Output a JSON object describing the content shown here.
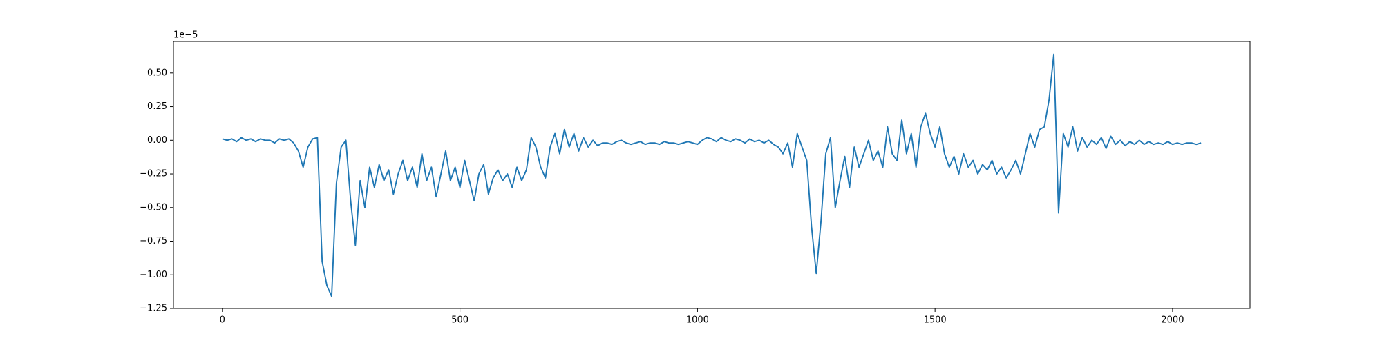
{
  "chart_data": {
    "type": "line",
    "y_offset_label": "1e−5",
    "xlim": [
      -103,
      2163
    ],
    "ylim": [
      -1.25,
      0.735
    ],
    "xticks": [
      0,
      500,
      1000,
      1500,
      2000
    ],
    "yticks": [
      {
        "value": -1.25,
        "label": "−1.25"
      },
      {
        "value": -1.0,
        "label": "−1.00"
      },
      {
        "value": -0.75,
        "label": "−0.75"
      },
      {
        "value": -0.5,
        "label": "−0.50"
      },
      {
        "value": -0.25,
        "label": "−0.25"
      },
      {
        "value": 0,
        "label": "0.00"
      },
      {
        "value": 0.25,
        "label": "0.25"
      },
      {
        "value": 0.5,
        "label": "0.50"
      }
    ],
    "grid": false,
    "x": [
      0,
      10,
      20,
      30,
      40,
      50,
      60,
      70,
      80,
      90,
      100,
      110,
      120,
      130,
      140,
      150,
      160,
      170,
      180,
      190,
      200,
      210,
      220,
      230,
      240,
      250,
      260,
      270,
      280,
      290,
      300,
      310,
      320,
      330,
      340,
      350,
      360,
      370,
      380,
      390,
      400,
      410,
      420,
      430,
      440,
      450,
      460,
      470,
      480,
      490,
      500,
      510,
      520,
      530,
      540,
      550,
      560,
      570,
      580,
      590,
      600,
      610,
      620,
      630,
      640,
      650,
      660,
      670,
      680,
      690,
      700,
      710,
      720,
      730,
      740,
      750,
      760,
      770,
      780,
      790,
      800,
      810,
      820,
      830,
      840,
      850,
      860,
      870,
      880,
      890,
      900,
      910,
      920,
      930,
      940,
      950,
      960,
      970,
      980,
      990,
      1000,
      1010,
      1020,
      1030,
      1040,
      1050,
      1060,
      1070,
      1080,
      1090,
      1100,
      1110,
      1120,
      1130,
      1140,
      1150,
      1160,
      1170,
      1180,
      1190,
      1200,
      1210,
      1220,
      1230,
      1240,
      1250,
      1260,
      1270,
      1280,
      1290,
      1300,
      1310,
      1320,
      1330,
      1340,
      1350,
      1360,
      1370,
      1380,
      1390,
      1400,
      1410,
      1420,
      1430,
      1440,
      1450,
      1460,
      1470,
      1480,
      1490,
      1500,
      1510,
      1520,
      1530,
      1540,
      1550,
      1560,
      1570,
      1580,
      1590,
      1600,
      1610,
      1620,
      1630,
      1640,
      1650,
      1660,
      1670,
      1680,
      1690,
      1700,
      1710,
      1720,
      1730,
      1740,
      1750,
      1760,
      1770,
      1780,
      1790,
      1800,
      1810,
      1820,
      1830,
      1840,
      1850,
      1860,
      1870,
      1880,
      1890,
      1900,
      1910,
      1920,
      1930,
      1940,
      1950,
      1960,
      1970,
      1980,
      1990,
      2000,
      2010,
      2020,
      2030,
      2040,
      2050,
      2060
    ],
    "series": [
      {
        "color": "#1f77b4",
        "values": [
          0.01,
          0.0,
          0.01,
          -0.01,
          0.02,
          0.0,
          0.01,
          -0.01,
          0.01,
          0.0,
          0.0,
          -0.02,
          0.01,
          0.0,
          0.01,
          -0.02,
          -0.08,
          -0.2,
          -0.05,
          0.01,
          0.02,
          -0.9,
          -1.08,
          -1.16,
          -0.32,
          -0.05,
          0.0,
          -0.45,
          -0.78,
          -0.3,
          -0.5,
          -0.2,
          -0.35,
          -0.18,
          -0.3,
          -0.22,
          -0.4,
          -0.25,
          -0.15,
          -0.3,
          -0.2,
          -0.35,
          -0.1,
          -0.3,
          -0.2,
          -0.42,
          -0.25,
          -0.08,
          -0.3,
          -0.2,
          -0.35,
          -0.15,
          -0.3,
          -0.45,
          -0.25,
          -0.18,
          -0.4,
          -0.28,
          -0.22,
          -0.3,
          -0.25,
          -0.35,
          -0.2,
          -0.3,
          -0.22,
          0.02,
          -0.05,
          -0.2,
          -0.28,
          -0.05,
          0.05,
          -0.1,
          0.08,
          -0.05,
          0.05,
          -0.08,
          0.02,
          -0.05,
          0.0,
          -0.04,
          -0.02,
          -0.02,
          -0.03,
          -0.01,
          0.0,
          -0.02,
          -0.03,
          -0.02,
          -0.01,
          -0.03,
          -0.02,
          -0.02,
          -0.03,
          -0.01,
          -0.02,
          -0.02,
          -0.03,
          -0.02,
          -0.01,
          -0.02,
          -0.03,
          0.0,
          0.02,
          0.01,
          -0.01,
          0.02,
          0.0,
          -0.01,
          0.01,
          0.0,
          -0.02,
          0.01,
          -0.01,
          0.0,
          -0.02,
          0.0,
          -0.03,
          -0.05,
          -0.1,
          -0.02,
          -0.2,
          0.05,
          -0.05,
          -0.15,
          -0.64,
          -0.99,
          -0.6,
          -0.1,
          0.02,
          -0.5,
          -0.3,
          -0.12,
          -0.35,
          -0.05,
          -0.2,
          -0.1,
          0.0,
          -0.15,
          -0.08,
          -0.2,
          0.1,
          -0.1,
          -0.15,
          0.15,
          -0.1,
          0.05,
          -0.2,
          0.1,
          0.2,
          0.05,
          -0.05,
          0.1,
          -0.1,
          -0.2,
          -0.12,
          -0.25,
          -0.1,
          -0.2,
          -0.15,
          -0.25,
          -0.18,
          -0.22,
          -0.15,
          -0.25,
          -0.2,
          -0.28,
          -0.22,
          -0.15,
          -0.25,
          -0.1,
          0.05,
          -0.05,
          0.08,
          0.1,
          0.3,
          0.64,
          -0.54,
          0.05,
          -0.05,
          0.1,
          -0.08,
          0.02,
          -0.05,
          0.0,
          -0.03,
          0.02,
          -0.06,
          0.03,
          -0.03,
          0.0,
          -0.04,
          -0.01,
          -0.03,
          0.0,
          -0.03,
          -0.01,
          -0.03,
          -0.02,
          -0.03,
          -0.01,
          -0.03,
          -0.02,
          -0.03,
          -0.02,
          -0.02,
          -0.03,
          -0.02
        ]
      }
    ]
  }
}
